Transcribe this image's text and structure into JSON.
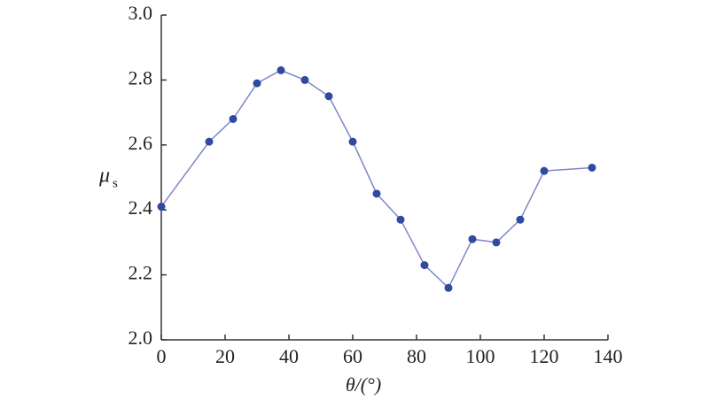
{
  "chart_data": {
    "type": "line",
    "x_label": "θ/(°)",
    "y_label": "μ",
    "y_label_subscript": "s",
    "x": [
      0,
      15,
      22.5,
      30,
      37.5,
      45,
      52.5,
      60,
      67.5,
      75,
      82.5,
      90,
      97.5,
      105,
      112.5,
      120,
      135
    ],
    "series": [
      {
        "color": "#2f4aa0",
        "line_color": "#8086c8",
        "values": [
          2.41,
          2.61,
          2.68,
          2.79,
          2.83,
          2.8,
          2.75,
          2.61,
          2.45,
          2.37,
          2.23,
          2.16,
          2.31,
          2.3,
          2.37,
          2.52,
          2.53
        ]
      }
    ],
    "xlim": [
      0,
      140
    ],
    "xticks": [
      0,
      20,
      40,
      60,
      80,
      100,
      120,
      140
    ],
    "ylim": [
      2.0,
      3.0
    ],
    "yticks": [
      {
        "value": 2.0,
        "label": "2.0"
      },
      2.2,
      2.4,
      2.6,
      2.8,
      {
        "value": 3.0,
        "label": "3.0"
      }
    ]
  }
}
